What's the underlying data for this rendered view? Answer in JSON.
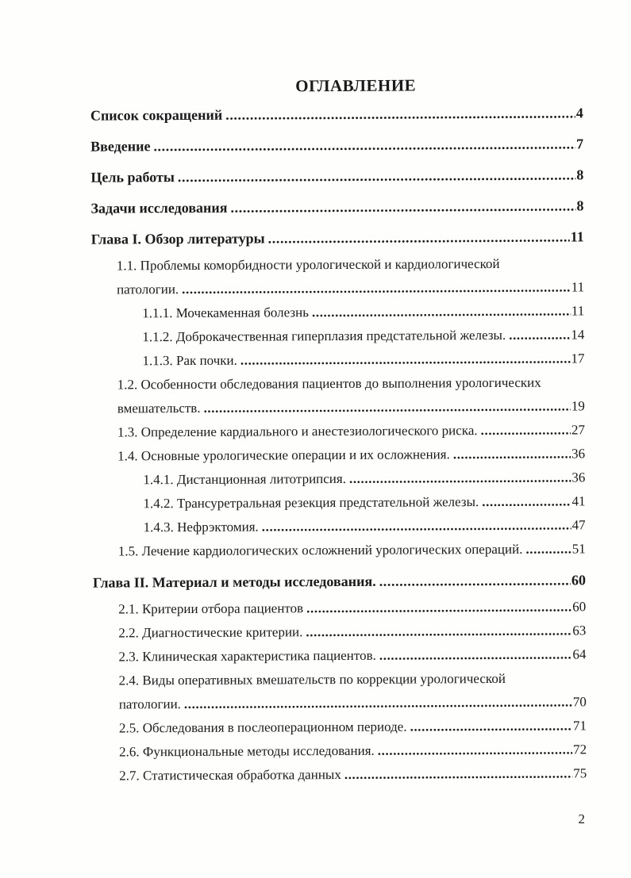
{
  "document": {
    "title": "ОГЛАВЛЕНИЕ",
    "footer_page_number": "2",
    "text_color": "#1b1b1b",
    "background_color": "#fefefd",
    "toc_entries": [
      {
        "indent": 0,
        "bold": true,
        "text": "Список сокращений",
        "page": "4"
      },
      {
        "indent": 0,
        "bold": true,
        "text": "Введение",
        "page": "7"
      },
      {
        "indent": 0,
        "bold": true,
        "text": "Цель работы",
        "page": "8"
      },
      {
        "indent": 0,
        "bold": true,
        "text": "Задачи исследования",
        "page": "8"
      },
      {
        "indent": 0,
        "bold": true,
        "text": "Глава I. Обзор литературы",
        "page": "11"
      },
      {
        "indent": 1,
        "bold": false,
        "text": "1.1. Проблемы коморбидности урологической и кардиологической",
        "page": null
      },
      {
        "indent": 1,
        "bold": false,
        "text": "патологии.",
        "page": "11"
      },
      {
        "indent": 2,
        "bold": false,
        "text": "1.1.1. Мочекаменная болезнь",
        "page": "11"
      },
      {
        "indent": 2,
        "bold": false,
        "text": "1.1.2. Доброкачественная гиперплазия предстательной железы.",
        "page": "14"
      },
      {
        "indent": 2,
        "bold": false,
        "text": "1.1.3. Рак почки.",
        "page": "17"
      },
      {
        "indent": 1,
        "bold": false,
        "text": "1.2. Особенности обследования пациентов до выполнения урологических",
        "page": null
      },
      {
        "indent": 1,
        "bold": false,
        "text": "вмешательств.",
        "page": "19"
      },
      {
        "indent": 1,
        "bold": false,
        "text": "1.3. Определение кардиального и анестезиологического риска.",
        "page": "27"
      },
      {
        "indent": 1,
        "bold": false,
        "text": "1.4. Основные урологические операции и их осложнения.",
        "page": "36"
      },
      {
        "indent": 2,
        "bold": false,
        "text": "1.4.1. Дистанционная литотрипсия.",
        "page": "36"
      },
      {
        "indent": 2,
        "bold": false,
        "text": "1.4.2. Трансуретральная резекция предстательной железы.",
        "page": "41"
      },
      {
        "indent": 2,
        "bold": false,
        "text": "1.4.3. Нефрэктомия.",
        "page": "47"
      },
      {
        "indent": 1,
        "bold": false,
        "text": "1.5. Лечение кардиологических осложнений урологических операций.",
        "page": "51"
      },
      {
        "indent": 0,
        "bold": true,
        "text": "Глава II. Материал и методы исследования.",
        "page": "60"
      },
      {
        "indent": 1,
        "bold": false,
        "text": "2.1. Критерии отбора пациентов",
        "page": "60"
      },
      {
        "indent": 1,
        "bold": false,
        "text": "2.2. Диагностические критерии.",
        "page": "63"
      },
      {
        "indent": 1,
        "bold": false,
        "text": "2.3. Клиническая характеристика пациентов.",
        "page": "64"
      },
      {
        "indent": 1,
        "bold": false,
        "text": "2.4. Виды оперативных вмешательств по коррекции урологической",
        "page": null
      },
      {
        "indent": 1,
        "bold": false,
        "text": "патологии.",
        "page": "70"
      },
      {
        "indent": 1,
        "bold": false,
        "text": "2.5. Обследования в послеоперационном периоде.",
        "page": "71"
      },
      {
        "indent": 1,
        "bold": false,
        "text": "2.6. Функциональные методы исследования.",
        "page": "72"
      },
      {
        "indent": 1,
        "bold": false,
        "text": "2.7. Статистическая обработка данных",
        "page": "75"
      }
    ]
  }
}
